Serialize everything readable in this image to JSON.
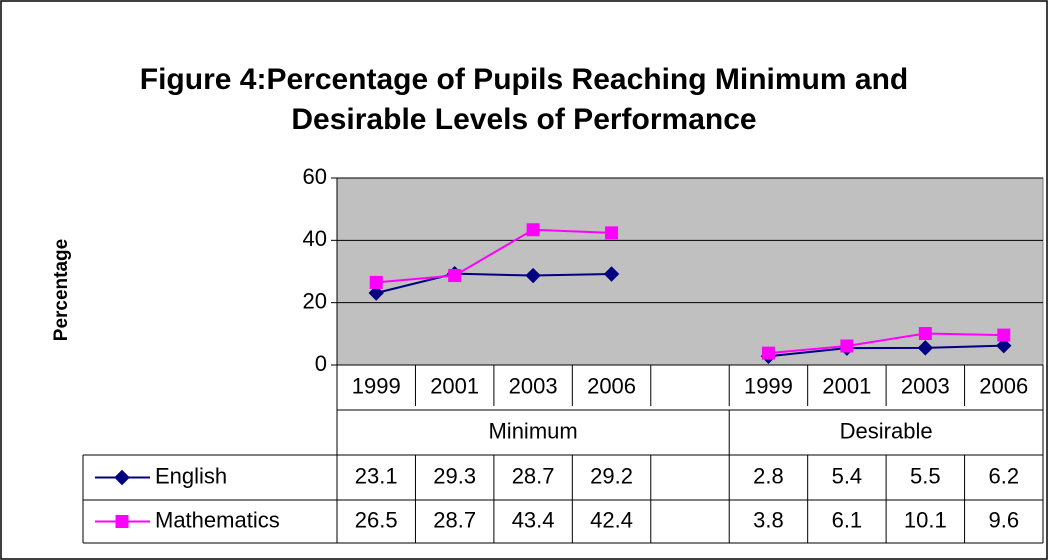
{
  "chart_data": {
    "type": "line",
    "title": "Figure 4:Percentage of Pupils Reaching Minimum and Desirable Levels of Performance",
    "y_label": "Percentage",
    "groups": [
      {
        "label": "Minimum",
        "categories": [
          "1999",
          "2001",
          "2003",
          "2006",
          null
        ]
      },
      {
        "label": "Desirable",
        "categories": [
          "1999",
          "2001",
          "2003",
          "2006"
        ]
      }
    ],
    "series": [
      {
        "name": "English",
        "color": "#000080",
        "marker": "diamond",
        "values": [
          23.1,
          29.3,
          28.7,
          29.2,
          null,
          2.8,
          5.4,
          5.5,
          6.2
        ]
      },
      {
        "name": "Mathematics",
        "color": "#ff00ff",
        "marker": "square",
        "values": [
          26.5,
          28.7,
          43.4,
          42.4,
          null,
          3.8,
          6.1,
          10.1,
          9.6
        ]
      }
    ],
    "ylim": [
      0,
      60
    ],
    "yticks": [
      0,
      20,
      40,
      60
    ],
    "grid": true,
    "plot_background": "#c0c0c0",
    "data_table": true
  }
}
